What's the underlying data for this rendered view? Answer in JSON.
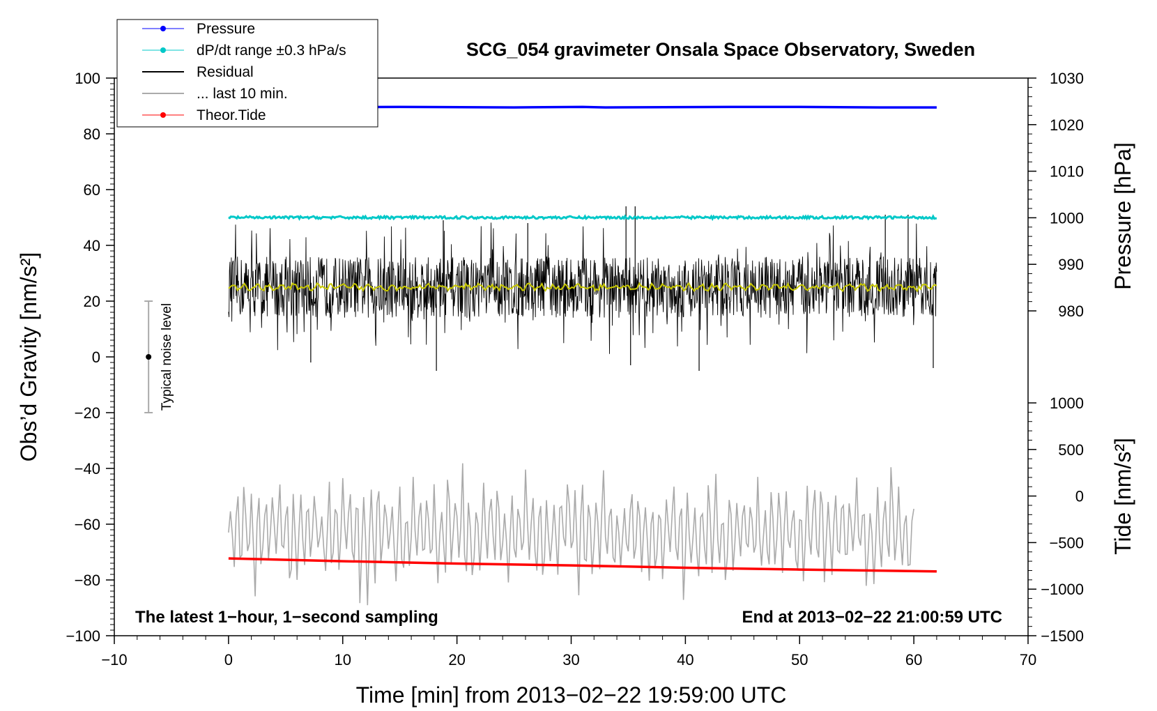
{
  "chart_data": {
    "type": "line",
    "title": "SCG_054 gravimeter Onsala Space Observatory, Sweden",
    "xlabel": "Time [min] from 2013−02−22 19:59:00 UTC",
    "ylabel_left": "Obs’d Gravity [nm/s²]",
    "ylabel_right_top": "Pressure [hPa]",
    "ylabel_right_bottom": "Tide [nm/s²]",
    "xlim": [
      -10,
      70
    ],
    "ylim_left": [
      -100,
      100
    ],
    "pressure_ticks_range": [
      980,
      1030
    ],
    "tide_ticks_range": [
      -1500,
      1000
    ],
    "x_ticks": [
      "−10",
      "0",
      "10",
      "20",
      "30",
      "40",
      "50",
      "60",
      "70"
    ],
    "y_left_ticks": [
      "−100",
      "−80",
      "−60",
      "−40",
      "−20",
      "0",
      "20",
      "40",
      "60",
      "80",
      "100"
    ],
    "pressure_ticks": [
      "980",
      "990",
      "1000",
      "1010",
      "1020",
      "1030"
    ],
    "tide_ticks": [
      "−1500",
      "−1000",
      "−500",
      "0",
      "500",
      "1000"
    ],
    "annotation_left": "The latest 1−hour, 1−second sampling",
    "annotation_right": "End at 2013−02−22 21:00:59 UTC",
    "noise_label": "Typical noise level",
    "noise_bar": {
      "x": -7,
      "center": 0,
      "low": -20,
      "high": 20
    },
    "legend": {
      "placement": "top-left",
      "entries": [
        "Pressure",
        "dP/dt range ±0.3 hPa/s",
        "Residual",
        "... last 10 min.",
        "Theor.Tide"
      ]
    },
    "colors": {
      "pressure": "#0000ff",
      "dpdt": "#00c8c8",
      "residual": "#000000",
      "residual_smooth": "#c8c800",
      "last10": "#aaaaaa",
      "tide": "#ff0000"
    },
    "series": [
      {
        "name": "Pressure",
        "units": "hPa",
        "x": [
          0,
          15,
          25,
          31,
          33,
          44,
          50,
          57,
          62
        ],
        "values": [
          1023.7,
          1023.8,
          1023.7,
          1023.8,
          1023.7,
          1023.8,
          1023.8,
          1023.7,
          1023.7
        ]
      },
      {
        "name": "dP/dt range ±0.3 hPa/s",
        "units": "nm/s² (plotted level)",
        "x": [
          0,
          62
        ],
        "values": [
          50,
          50
        ]
      },
      {
        "name": "Residual",
        "units": "nm/s²",
        "x_range": [
          0,
          62
        ],
        "mean": 25,
        "typical_min": 5,
        "typical_max": 48,
        "extreme_min": -6,
        "extreme_max": 54
      },
      {
        "name": "... last 10 min.",
        "units": "nm/s² (plotted level)",
        "x_range": [
          0,
          60
        ],
        "mean": -63,
        "min": -91,
        "max": -36
      },
      {
        "name": "Theor.Tide",
        "units": "nm/s²",
        "x": [
          0,
          10,
          20,
          30,
          40,
          50,
          62
        ],
        "values": [
          -670,
          -700,
          -725,
          -745,
          -770,
          -790,
          -810
        ]
      }
    ]
  }
}
